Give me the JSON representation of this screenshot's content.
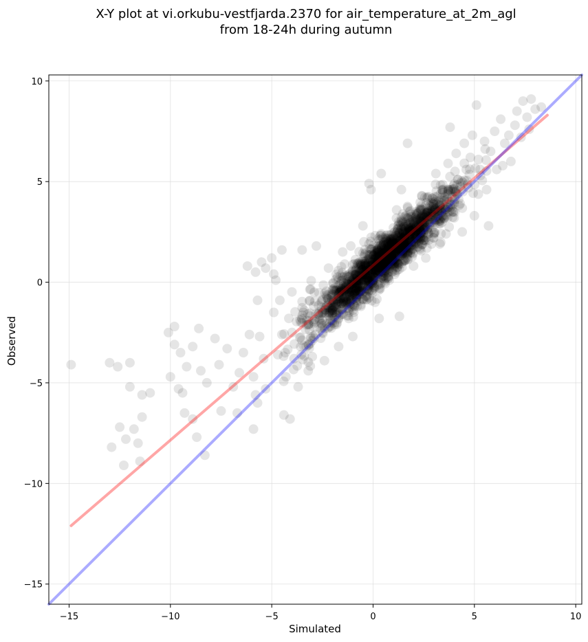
{
  "chart_data": {
    "type": "scatter",
    "title_lines": [
      "X-Y plot at vi.orkubu-vestfjarda.2370 for air_temperature_at_2m_agl",
      "from 18-24h during autumn"
    ],
    "xlabel": "Simulated",
    "ylabel": "Observed",
    "xlim": [
      -16,
      10.3
    ],
    "ylim": [
      -16,
      10.3
    ],
    "xticks": [
      -15,
      -10,
      -5,
      0,
      5,
      10
    ],
    "yticks": [
      -15,
      -10,
      -5,
      0,
      5,
      10
    ],
    "xtick_labels": [
      "−15",
      "−10",
      "−5",
      "0",
      "5",
      "10"
    ],
    "ytick_labels": [
      "−15",
      "−10",
      "−5",
      "0",
      "5",
      "10"
    ],
    "grid": true,
    "point_color": "#000000",
    "point_alpha": 0.1,
    "point_count_estimate": 2000,
    "points_sample": [
      [
        -14.9,
        -4.1
      ],
      [
        -13.0,
        -4.0
      ],
      [
        -12.6,
        -4.2
      ],
      [
        -12.0,
        -4.0
      ],
      [
        -12.9,
        -8.2
      ],
      [
        -12.5,
        -7.2
      ],
      [
        -12.2,
        -7.8
      ],
      [
        -11.8,
        -7.3
      ],
      [
        -11.6,
        -8.0
      ],
      [
        -11.5,
        -8.9
      ],
      [
        -12.3,
        -9.1
      ],
      [
        -11.4,
        -6.7
      ],
      [
        -11.4,
        -5.6
      ],
      [
        -11.0,
        -5.5
      ],
      [
        -12.0,
        -5.2
      ],
      [
        -10.1,
        -2.5
      ],
      [
        -9.8,
        -2.2
      ],
      [
        -10.0,
        -4.7
      ],
      [
        -9.8,
        -3.1
      ],
      [
        -9.5,
        -3.5
      ],
      [
        -9.2,
        -4.2
      ],
      [
        -9.6,
        -5.3
      ],
      [
        -9.4,
        -5.5
      ],
      [
        -9.3,
        -6.5
      ],
      [
        -8.9,
        -6.8
      ],
      [
        -8.7,
        -7.7
      ],
      [
        -8.3,
        -8.6
      ],
      [
        -8.6,
        -2.3
      ],
      [
        -8.9,
        -3.2
      ],
      [
        -8.5,
        -4.4
      ],
      [
        -8.2,
        -5.0
      ],
      [
        -7.8,
        -2.8
      ],
      [
        -7.6,
        -4.1
      ],
      [
        -7.5,
        -6.4
      ],
      [
        -7.2,
        -3.3
      ],
      [
        -6.9,
        -5.2
      ],
      [
        -6.7,
        -6.5
      ],
      [
        -6.6,
        -4.5
      ],
      [
        -6.4,
        -3.5
      ],
      [
        -6.1,
        -2.6
      ],
      [
        -6.2,
        0.8
      ],
      [
        -5.8,
        0.5
      ],
      [
        -5.5,
        1.0
      ],
      [
        -5.3,
        0.7
      ],
      [
        -5.0,
        1.2
      ],
      [
        -4.9,
        0.4
      ],
      [
        -4.8,
        0.1
      ],
      [
        -4.5,
        1.6
      ],
      [
        -5.7,
        -0.9
      ],
      [
        -5.6,
        -2.7
      ],
      [
        -5.4,
        -3.8
      ],
      [
        -5.9,
        -4.7
      ],
      [
        -5.8,
        -5.6
      ],
      [
        -5.7,
        -6.0
      ],
      [
        -5.9,
        -7.3
      ],
      [
        -5.3,
        -5.3
      ],
      [
        -4.9,
        -1.5
      ],
      [
        -4.6,
        -0.9
      ],
      [
        -4.5,
        -2.6
      ],
      [
        -4.7,
        -3.6
      ],
      [
        -4.3,
        -4.7
      ],
      [
        -4.1,
        -6.8
      ],
      [
        -4.4,
        -6.6
      ],
      [
        -4.0,
        -2.5
      ],
      [
        -3.9,
        -3.8
      ],
      [
        -3.7,
        -5.2
      ],
      [
        -3.5,
        1.6
      ],
      [
        -3.4,
        -1.4
      ],
      [
        -3.3,
        -3.2
      ],
      [
        -3.2,
        -4.4
      ],
      [
        -3.2,
        -2.1
      ],
      [
        -3.0,
        -3.7
      ],
      [
        -2.9,
        -0.5
      ],
      [
        -2.8,
        1.8
      ],
      [
        -2.6,
        -2.3
      ],
      [
        -2.5,
        -2.5
      ],
      [
        -2.4,
        -3.9
      ],
      [
        -2.2,
        0.7
      ],
      [
        -2.0,
        -1.4
      ],
      [
        -1.9,
        -0.3
      ],
      [
        -1.8,
        -2.1
      ],
      [
        -1.7,
        -3.2
      ],
      [
        -1.5,
        1.5
      ],
      [
        -1.4,
        0.9
      ],
      [
        -1.3,
        -0.7
      ],
      [
        -1.2,
        -1.8
      ],
      [
        -1.1,
        1.8
      ],
      [
        -1.0,
        -2.7
      ],
      [
        -0.8,
        0.2
      ],
      [
        -0.7,
        -0.6
      ],
      [
        -0.6,
        -1.2
      ],
      [
        -0.5,
        2.8
      ],
      [
        -0.4,
        0.6
      ],
      [
        -0.3,
        -0.4
      ],
      [
        -0.2,
        4.9
      ],
      [
        -0.1,
        4.6
      ],
      [
        -0.2,
        1.9
      ],
      [
        0.0,
        0.3
      ],
      [
        0.1,
        -1.0
      ],
      [
        0.2,
        1.3
      ],
      [
        0.3,
        -1.8
      ],
      [
        0.4,
        5.4
      ],
      [
        0.5,
        0.8
      ],
      [
        0.6,
        2.2
      ],
      [
        0.7,
        1.6
      ],
      [
        0.8,
        0.1
      ],
      [
        0.9,
        1.9
      ],
      [
        1.0,
        2.7
      ],
      [
        1.1,
        1.4
      ],
      [
        1.2,
        0.6
      ],
      [
        1.3,
        -1.7
      ],
      [
        1.4,
        4.6
      ],
      [
        1.5,
        2.4
      ],
      [
        1.6,
        1.1
      ],
      [
        1.7,
        6.9
      ],
      [
        1.8,
        3.5
      ],
      [
        1.9,
        2.0
      ],
      [
        2.0,
        0.8
      ],
      [
        2.1,
        3.2
      ],
      [
        2.3,
        1.7
      ],
      [
        2.4,
        4.3
      ],
      [
        2.5,
        2.6
      ],
      [
        2.6,
        1.2
      ],
      [
        2.8,
        3.8
      ],
      [
        3.0,
        2.2
      ],
      [
        3.1,
        5.4
      ],
      [
        3.2,
        3.1
      ],
      [
        3.3,
        1.9
      ],
      [
        3.4,
        4.6
      ],
      [
        3.5,
        3.6
      ],
      [
        3.6,
        2.4
      ],
      [
        3.7,
        5.9
      ],
      [
        3.8,
        7.7
      ],
      [
        3.9,
        4.2
      ],
      [
        4.0,
        3.2
      ],
      [
        4.1,
        6.4
      ],
      [
        4.2,
        5.1
      ],
      [
        4.3,
        3.9
      ],
      [
        4.4,
        2.5
      ],
      [
        4.5,
        6.9
      ],
      [
        4.6,
        5.6
      ],
      [
        4.7,
        4.7
      ],
      [
        4.8,
        6.2
      ],
      [
        4.9,
        7.3
      ],
      [
        5.0,
        3.3
      ],
      [
        5.1,
        8.8
      ],
      [
        5.2,
        6.1
      ],
      [
        5.3,
        5.3
      ],
      [
        5.5,
        7.0
      ],
      [
        5.6,
        4.6
      ],
      [
        5.7,
        2.8
      ],
      [
        5.8,
        6.5
      ],
      [
        6.0,
        7.5
      ],
      [
        6.1,
        5.6
      ],
      [
        6.3,
        8.1
      ],
      [
        6.5,
        6.9
      ],
      [
        6.7,
        7.3
      ],
      [
        6.8,
        6.0
      ],
      [
        7.0,
        7.8
      ],
      [
        7.1,
        8.5
      ],
      [
        7.3,
        7.2
      ],
      [
        7.4,
        9.0
      ],
      [
        7.6,
        8.2
      ],
      [
        7.7,
        7.6
      ],
      [
        7.8,
        9.1
      ],
      [
        8.0,
        8.6
      ],
      [
        8.3,
        8.7
      ]
    ],
    "lines": [
      {
        "color": "#ff0000",
        "alpha": 0.35,
        "x": [
          -14.9,
          8.6
        ],
        "y": [
          -12.1,
          8.3
        ]
      },
      {
        "color": "#0000ff",
        "alpha": 0.33,
        "x": [
          -16,
          10.3
        ],
        "y": [
          -16,
          10.3
        ]
      }
    ]
  }
}
